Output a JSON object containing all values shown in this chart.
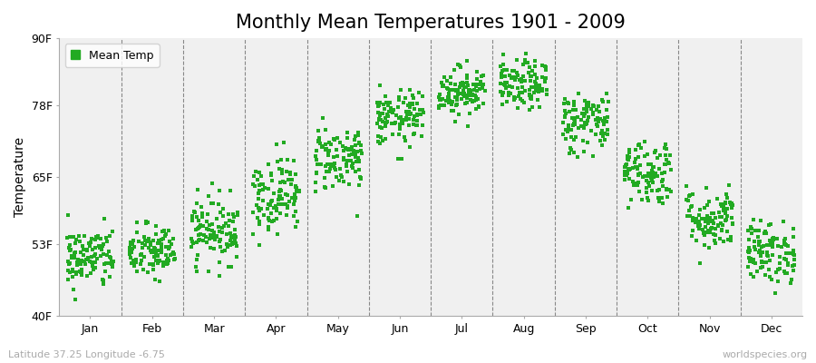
{
  "title": "Monthly Mean Temperatures 1901 - 2009",
  "ylabel": "Temperature",
  "xlabel_labels": [
    "Jan",
    "Feb",
    "Mar",
    "Apr",
    "May",
    "Jun",
    "Jul",
    "Aug",
    "Sep",
    "Oct",
    "Nov",
    "Dec"
  ],
  "ytick_labels": [
    "40F",
    "53F",
    "65F",
    "78F",
    "90F"
  ],
  "ytick_values": [
    40,
    53,
    65,
    78,
    90
  ],
  "ylim": [
    40,
    90
  ],
  "xlim": [
    0,
    12
  ],
  "legend_label": "Mean Temp",
  "marker_color": "#22AA22",
  "marker": "s",
  "marker_size": 2.5,
  "bg_color": "#F0F0F0",
  "fig_bg_color": "#FFFFFF",
  "bottom_left_text": "Latitude 37.25 Longitude -6.75",
  "bottom_right_text": "worldspecies.org",
  "title_fontsize": 15,
  "label_fontsize": 10,
  "tick_fontsize": 9,
  "monthly_mean_temps_f": [
    50.5,
    51.5,
    55.5,
    62.0,
    68.5,
    75.5,
    80.5,
    81.5,
    75.0,
    66.0,
    57.5,
    51.5
  ],
  "monthly_std_temps_f": [
    2.8,
    2.5,
    3.0,
    3.5,
    3.0,
    2.5,
    2.2,
    2.2,
    2.8,
    3.0,
    2.8,
    2.8
  ],
  "x_spread": 0.38,
  "n_years": 109,
  "seed": 42
}
